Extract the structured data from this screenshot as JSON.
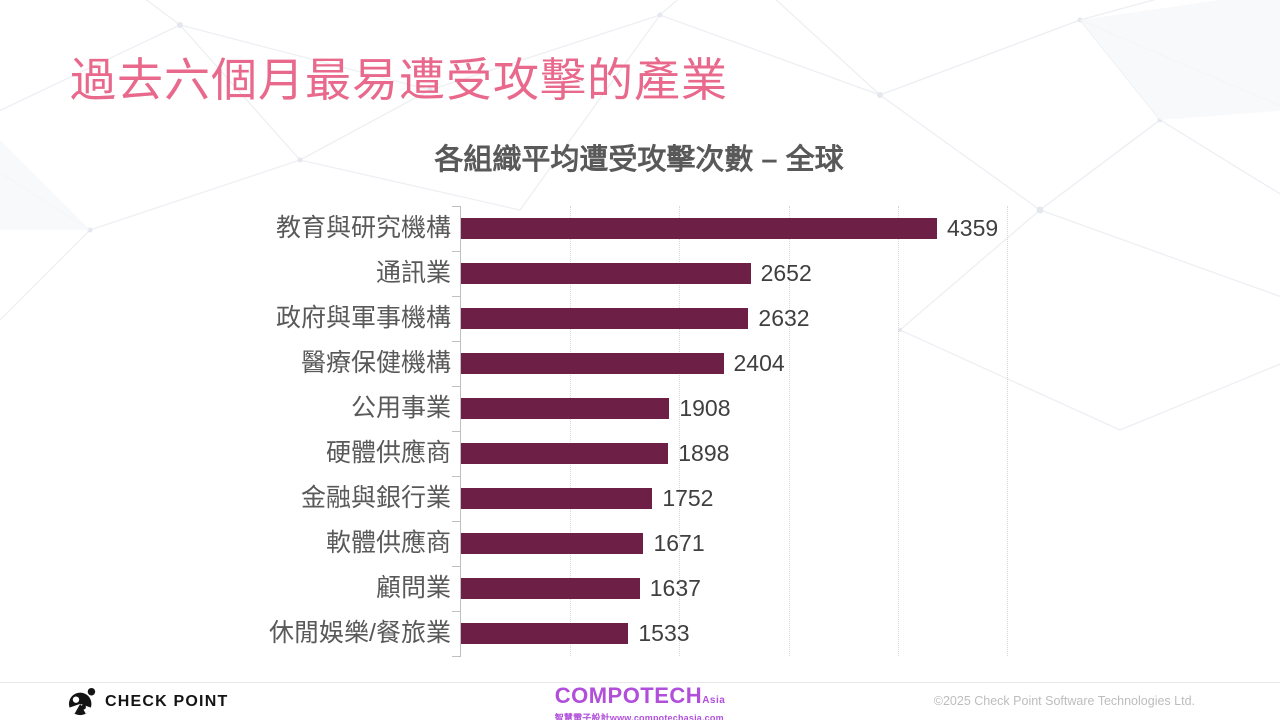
{
  "slide": {
    "title": "過去六個月最易遭受攻擊的產業",
    "title_color": "#e8698c"
  },
  "chart_data": {
    "type": "bar",
    "orientation": "horizontal",
    "title": "各組織平均遭受攻擊次數 – 全球",
    "categories": [
      "教育與研究機構",
      "通訊業",
      "政府與軍事機構",
      "醫療保健機構",
      "公用事業",
      "硬體供應商",
      "金融與銀行業",
      "軟體供應商",
      "顧問業",
      "休閒娛樂/餐旅業"
    ],
    "values": [
      4359,
      2652,
      2632,
      2404,
      1908,
      1898,
      1752,
      1671,
      1637,
      1533
    ],
    "value_labels": true,
    "xlim": [
      0,
      5000
    ],
    "gridline_step": 1000,
    "grid": true,
    "legend": false,
    "bar_color": "#6e1f45",
    "label_color": "#595959",
    "value_label_color": "#3f3f3f",
    "grid_color": "#d8d8d8",
    "axis_color": "#bfbfbf",
    "xlabel": "",
    "ylabel": ""
  },
  "footer": {
    "checkpoint_wordmark": "CHECK POINT",
    "compotech_brand": "COMPOTECH",
    "compotech_suffix": "Asia",
    "compotech_tagline": "智慧電子設計www.compotechasia.com",
    "compotech_color": "#b14fdb",
    "copyright": "©2025 Check Point Software Technologies Ltd."
  }
}
